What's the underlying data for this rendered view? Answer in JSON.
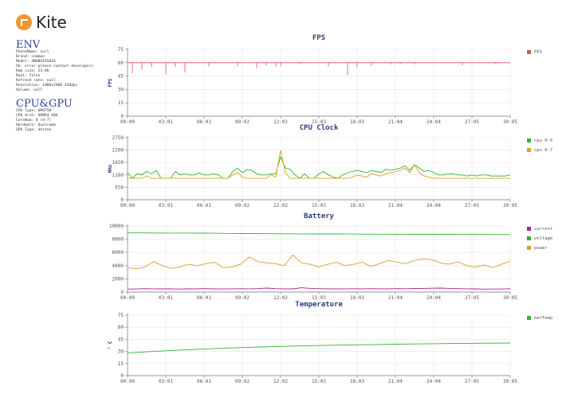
{
  "app": {
    "name": "Kite"
  },
  "env": {
    "title": "ENV",
    "lines": [
      "PhoneName: null",
      "Brand: common",
      "Model: ANUBAISS01A",
      "OS: error please contact developers",
      "Ram size: 23.8G",
      "Root: false",
      "Refresh rate: null",
      "Resolution: 1080x2400 420dpi",
      "Volume: null"
    ]
  },
  "cpugpu": {
    "title": "CPU&GPU",
    "lines": [
      "CPU Type: SM8750",
      "CPU Arch: ARM64_V8A",
      "CoreNum: 8 (0-7)",
      "Hardware: Qualcomm",
      "GPU Type: adreno"
    ]
  },
  "chart_data": [
    {
      "type": "line",
      "title": "FPS",
      "ylabel": "FPS",
      "ylim": [
        0,
        75
      ],
      "yticks": [
        0,
        15,
        30,
        45,
        60,
        75
      ],
      "xticks": [
        "00:00",
        "03:01",
        "06:01",
        "09:02",
        "12:02",
        "15:03",
        "18:03",
        "21:04",
        "24:04",
        "27:05",
        "30:05"
      ],
      "series": [
        {
          "name": "FPS",
          "color": "#d9534f",
          "style": "spikes",
          "values": [
            60,
            48,
            60,
            52,
            60,
            55,
            60,
            60,
            47,
            60,
            55,
            60,
            49,
            60,
            60,
            60,
            60,
            56,
            60,
            60,
            60,
            60,
            60,
            56,
            60,
            60,
            60,
            54,
            60,
            57,
            60,
            55,
            56,
            60,
            60,
            60,
            58,
            60,
            60,
            60,
            60,
            60,
            56,
            60,
            60,
            60,
            46,
            60,
            55,
            60,
            60,
            57,
            60,
            60,
            60,
            58,
            60,
            58,
            60,
            60,
            58,
            60,
            60,
            60,
            60,
            60,
            60,
            60,
            60,
            60,
            57,
            60,
            60,
            60,
            60,
            60,
            60,
            58,
            60,
            60,
            60
          ]
        }
      ]
    },
    {
      "type": "line",
      "title": "CPU Clock",
      "ylabel": "MHz",
      "ylim": [
        0,
        2750
      ],
      "yticks": [
        0,
        550,
        1100,
        1650,
        2200,
        2750
      ],
      "xticks": [
        "00:00",
        "03:01",
        "06:01",
        "09:02",
        "12:02",
        "15:03",
        "18:03",
        "21:04",
        "24:04",
        "27:05",
        "30:05"
      ],
      "series": [
        {
          "name": "cpu 0-5",
          "color": "#2fb52f",
          "values": [
            1200,
            950,
            1150,
            1100,
            1250,
            1150,
            1300,
            950,
            950,
            950,
            1250,
            1100,
            1150,
            1100,
            1100,
            1200,
            1100,
            1100,
            1150,
            1100,
            950,
            950,
            1250,
            1400,
            1200,
            1350,
            1300,
            1150,
            1100,
            1100,
            1150,
            1150,
            1900,
            1400,
            1350,
            1100,
            950,
            1150,
            950,
            950,
            1150,
            1250,
            1100,
            1000,
            950,
            1100,
            1200,
            1250,
            1300,
            1250,
            1200,
            1300,
            1250,
            1200,
            1350,
            1300,
            1350,
            1400,
            1500,
            1300,
            1550,
            1400,
            1250,
            1300,
            1200,
            1100,
            1100,
            1150,
            1150,
            1100,
            1100,
            1050,
            1100,
            1050,
            1100,
            1100,
            1050,
            1050,
            1050,
            1050,
            1100
          ]
        },
        {
          "name": "cpu 6-7",
          "color": "#e0a020",
          "values": [
            950,
            950,
            950,
            950,
            1050,
            950,
            950,
            950,
            950,
            950,
            950,
            950,
            950,
            950,
            950,
            950,
            950,
            950,
            950,
            950,
            950,
            950,
            1100,
            1200,
            1000,
            950,
            950,
            950,
            950,
            950,
            1100,
            1000,
            2200,
            1200,
            950,
            950,
            950,
            950,
            950,
            950,
            950,
            950,
            950,
            950,
            950,
            950,
            950,
            1000,
            1100,
            1050,
            1000,
            1150,
            1100,
            1050,
            1150,
            1200,
            1250,
            1300,
            1400,
            1200,
            1550,
            1200,
            1050,
            1000,
            950,
            950,
            950,
            950,
            950,
            950,
            950,
            950,
            950,
            950,
            950,
            950,
            950,
            950,
            950,
            950,
            950
          ]
        }
      ]
    },
    {
      "type": "line",
      "title": "Battery",
      "ylabel": "",
      "ylim": [
        0,
        10000
      ],
      "yticks": [
        0,
        2000,
        4000,
        6000,
        8000,
        10000
      ],
      "xticks": [
        "00:00",
        "03:01",
        "06:01",
        "09:02",
        "12:02",
        "15:03",
        "18:03",
        "21:04",
        "24:04",
        "27:05",
        "30:05"
      ],
      "series": [
        {
          "name": "current",
          "color": "#b0208f",
          "values": [
            450,
            470,
            520,
            500,
            480,
            500,
            460,
            480,
            500,
            520,
            480,
            470,
            500,
            510,
            490,
            520,
            600,
            520,
            500,
            480,
            650,
            560,
            520,
            500,
            480,
            490,
            510,
            500,
            520,
            500,
            490,
            520,
            510,
            540,
            560,
            580,
            600,
            560,
            520,
            500,
            480,
            450,
            460,
            470,
            500
          ]
        },
        {
          "name": "voltage",
          "color": "#2fb52f",
          "values": [
            8950,
            8950,
            8950,
            8940,
            8940,
            8930,
            8930,
            8930,
            8920,
            8920,
            8900,
            8880,
            8870,
            8860,
            8850,
            8850,
            8840,
            8830,
            8820,
            8820,
            8810,
            8800,
            8800,
            8790,
            8790,
            8780,
            8780,
            8770,
            8770,
            8760,
            8760,
            8750,
            8750,
            8740,
            8740,
            8740,
            8730,
            8730,
            8720,
            8720,
            8720,
            8710,
            8710,
            8700,
            8700
          ]
        },
        {
          "name": "power",
          "color": "#d6a22a",
          "values": [
            3700,
            3500,
            3800,
            4600,
            4000,
            3600,
            3800,
            4200,
            4000,
            4300,
            4500,
            3700,
            3800,
            4200,
            5300,
            4600,
            4400,
            4300,
            4000,
            5600,
            4400,
            4200,
            3800,
            4200,
            4500,
            4000,
            4200,
            4500,
            3900,
            4300,
            4800,
            4500,
            4300,
            4800,
            5000,
            4900,
            4400,
            4200,
            4600,
            4000,
            3800,
            4100,
            3700,
            4200,
            4700
          ]
        }
      ]
    },
    {
      "type": "line",
      "title": "Temperature",
      "ylabel": "° C",
      "ylim": [
        0,
        75
      ],
      "yticks": [
        0,
        15,
        30,
        45,
        60,
        75
      ],
      "xticks": [
        "00:00",
        "03:01",
        "06:01",
        "09:02",
        "12:02",
        "15:03",
        "18:03",
        "21:04",
        "24:04",
        "27:05",
        "30:05"
      ],
      "series": [
        {
          "name": "batTemp",
          "color": "#2fb52f",
          "values": [
            28,
            29.5,
            30.8,
            32,
            33,
            33.9,
            34.8,
            35.5,
            36.2,
            36.8,
            37.3,
            37.8,
            38.2,
            38.6,
            39,
            39.3,
            39.6,
            39.9,
            40.1,
            40.3,
            40.5
          ]
        }
      ]
    }
  ]
}
